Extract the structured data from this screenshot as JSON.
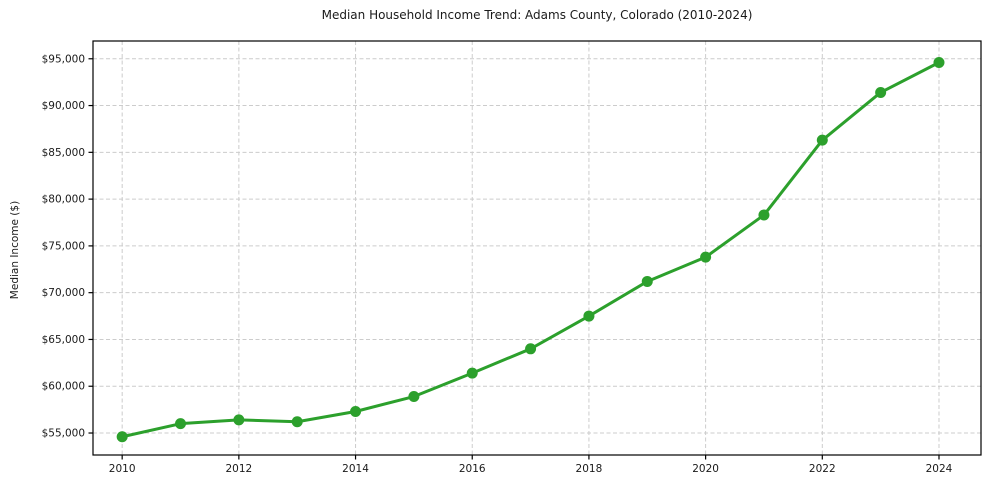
{
  "figure": {
    "background": "#ffffff"
  },
  "chart_data": {
    "type": "line",
    "title": "Median Household Income Trend: Adams County, Colorado (2010-2024)",
    "xlabel": "",
    "ylabel": "Median Income ($)",
    "x": [
      2010,
      2011,
      2012,
      2013,
      2014,
      2015,
      2016,
      2017,
      2018,
      2019,
      2020,
      2021,
      2022,
      2023,
      2024
    ],
    "series": [
      {
        "name": "Median Household Income",
        "values": [
          54600,
          56000,
          56400,
          56200,
          57300,
          58900,
          61400,
          64000,
          67500,
          71200,
          73800,
          78300,
          86300,
          91400,
          94600
        ],
        "color": "#2ca02c",
        "marker": "circle"
      }
    ],
    "xticks": [
      2010,
      2012,
      2014,
      2016,
      2018,
      2020,
      2022,
      2024
    ],
    "xtick_labels": [
      "2010",
      "2012",
      "2014",
      "2016",
      "2018",
      "2020",
      "2022",
      "2024"
    ],
    "yticks": [
      55000,
      60000,
      65000,
      70000,
      75000,
      80000,
      85000,
      90000,
      95000
    ],
    "ytick_labels": [
      "$55,000",
      "$60,000",
      "$65,000",
      "$70,000",
      "$75,000",
      "$80,000",
      "$85,000",
      "$90,000",
      "$95,000"
    ],
    "xlim": [
      2009.5,
      2024.72
    ],
    "ylim": [
      52650,
      96900
    ],
    "grid": true,
    "grid_color": "#cccccc",
    "grid_style": "dashed",
    "spine_color": "#000000",
    "legend": "none"
  }
}
